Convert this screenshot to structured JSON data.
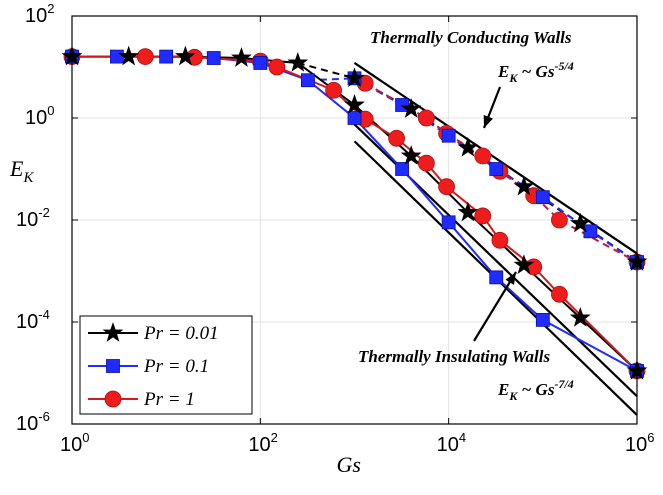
{
  "chart_data": {
    "type": "line",
    "xscale": "log",
    "yscale": "log",
    "xlim": [
      1,
      1000000
    ],
    "ylim": [
      1e-06,
      100
    ],
    "xlabel": "Gs",
    "ylabel": "E_K",
    "grid": true,
    "legend_placement": "bottom-left",
    "x_ticks": [
      {
        "base": "10",
        "exp": "0",
        "value": 1
      },
      {
        "base": "10",
        "exp": "2",
        "value": 100
      },
      {
        "base": "10",
        "exp": "4",
        "value": 10000
      },
      {
        "base": "10",
        "exp": "6",
        "value": 1000000
      }
    ],
    "y_ticks": [
      {
        "base": "10",
        "exp": "-6",
        "value": 1e-06
      },
      {
        "base": "10",
        "exp": "-4",
        "value": 0.0001
      },
      {
        "base": "10",
        "exp": "-2",
        "value": 0.01
      },
      {
        "base": "10",
        "exp": "0",
        "value": 1
      },
      {
        "base": "10",
        "exp": "2",
        "value": 100
      }
    ],
    "series": [
      {
        "name": "Pr = 0.01",
        "color": "#000000",
        "marker": "star",
        "insulating": [
          [
            1,
            16
          ],
          [
            4,
            16
          ],
          [
            16,
            16
          ],
          [
            63,
            15
          ],
          [
            250,
            12
          ],
          [
            1000,
            1.8
          ],
          [
            4000,
            0.18
          ],
          [
            16000,
            0.014
          ],
          [
            63000,
            0.0013
          ],
          [
            250000,
            0.00012
          ],
          [
            1000000,
            1.1e-05
          ]
        ],
        "conducting": [
          [
            250,
            12
          ],
          [
            1000,
            6
          ],
          [
            4000,
            1.5
          ],
          [
            16000,
            0.26
          ],
          [
            63000,
            0.045
          ],
          [
            250000,
            0.0085
          ],
          [
            1000000,
            0.0015
          ]
        ]
      },
      {
        "name": "Pr = 0.1",
        "color": "#1f2bff",
        "marker": "square",
        "insulating": [
          [
            1,
            16
          ],
          [
            3,
            16
          ],
          [
            10,
            16
          ],
          [
            32,
            15
          ],
          [
            100,
            12
          ],
          [
            320,
            5.5
          ],
          [
            1000,
            1.0
          ],
          [
            3200,
            0.1
          ],
          [
            10000,
            0.009
          ],
          [
            32000,
            0.00075
          ],
          [
            100000,
            0.00011
          ],
          [
            1000000,
            1.1e-05
          ]
        ],
        "conducting": [
          [
            320,
            5.5
          ],
          [
            1000,
            6
          ],
          [
            3200,
            1.8
          ],
          [
            10000,
            0.45
          ],
          [
            32000,
            0.1
          ],
          [
            100000,
            0.028
          ],
          [
            320000,
            0.006
          ],
          [
            1000000,
            0.0015
          ]
        ]
      },
      {
        "name": "Pr = 1",
        "color": "#ee1c1c",
        "marker": "circle",
        "insulating": [
          [
            1,
            16
          ],
          [
            6,
            16
          ],
          [
            20,
            15.5
          ],
          [
            100,
            13
          ],
          [
            150,
            10
          ],
          [
            600,
            3.5
          ],
          [
            1300,
            0.95
          ],
          [
            2800,
            0.4
          ],
          [
            5800,
            0.13
          ],
          [
            9500,
            0.045
          ],
          [
            23000,
            0.012
          ],
          [
            35000,
            0.004
          ],
          [
            80000,
            0.0012
          ],
          [
            150000,
            0.00035
          ],
          [
            1000000,
            1.1e-05
          ]
        ],
        "conducting": [
          [
            1300,
            4.8
          ],
          [
            5800,
            1.0
          ],
          [
            9500,
            0.5
          ],
          [
            23000,
            0.18
          ],
          [
            35000,
            0.09
          ],
          [
            80000,
            0.03
          ],
          [
            150000,
            0.01
          ],
          [
            1000000,
            0.0015
          ]
        ]
      }
    ],
    "reference_lines": [
      {
        "name": "conducting",
        "points": [
          [
            1000,
            12
          ],
          [
            1000000,
            0.0022
          ]
        ]
      },
      {
        "name": "insulating",
        "points": [
          [
            1000,
            0.75
          ],
          [
            1000000,
            3.5e-06
          ]
        ]
      },
      {
        "name": "insulating_lower",
        "points": [
          [
            1000,
            0.35
          ],
          [
            1000000,
            1.5e-06
          ]
        ]
      }
    ],
    "annotations": [
      {
        "title": "Thermally Conducting Walls",
        "formula_base": "E",
        "formula_sub": "K",
        "formula_rel": " ~ Gs",
        "formula_exp": "-5/4"
      },
      {
        "title": "Thermally Insulating Walls",
        "formula_base": "E",
        "formula_sub": "K",
        "formula_rel": " ~ Gs",
        "formula_exp": "-7/4"
      }
    ],
    "legend": [
      {
        "label": "Pr = 0.01",
        "marker": "star",
        "color": "#000000"
      },
      {
        "label": "Pr = 0.1",
        "marker": "square",
        "color": "#1f2bff"
      },
      {
        "label": "Pr = 1",
        "marker": "circle",
        "color": "#ee1c1c"
      }
    ]
  }
}
